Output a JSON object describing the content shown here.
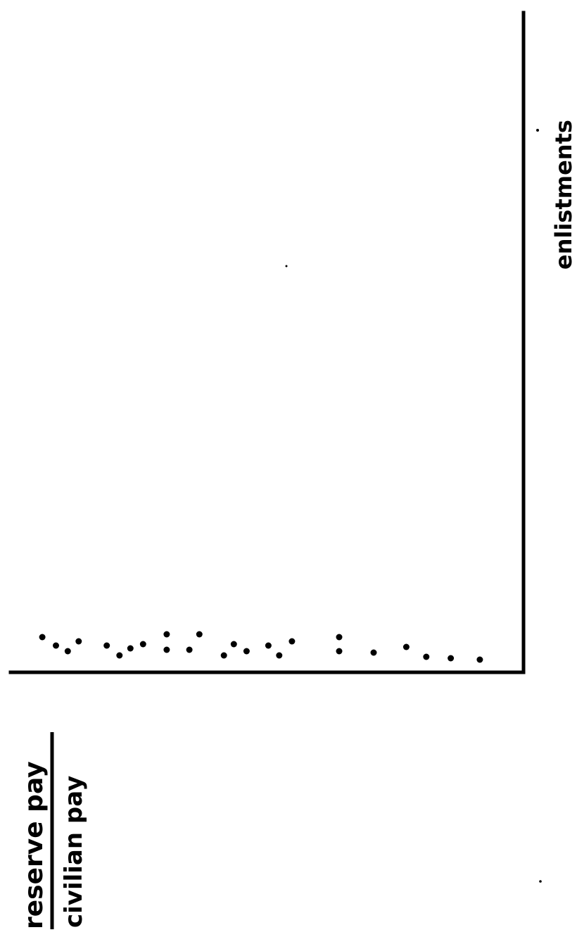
{
  "chart_data": {
    "type": "scatter",
    "title": "",
    "orientation": "rotated-90",
    "x_axis": {
      "label": "enlistments",
      "ticks": []
    },
    "y_axis": {
      "label_numerator": "reserve pay",
      "label_denominator": "civilian pay",
      "ticks": []
    },
    "grid": false,
    "legend": "none",
    "points": [
      {
        "x": 1.8,
        "y": 0.35
      },
      {
        "x": 1.2,
        "y": 0.5
      },
      {
        "x": 0.8,
        "y": 0.63
      },
      {
        "x": 1.5,
        "y": 0.75
      },
      {
        "x": 1.2,
        "y": 1.06
      },
      {
        "x": 0.5,
        "y": 1.2
      },
      {
        "x": 1.0,
        "y": 1.32
      },
      {
        "x": 1.3,
        "y": 1.46
      },
      {
        "x": 0.9,
        "y": 1.72
      },
      {
        "x": 2.0,
        "y": 1.72
      },
      {
        "x": 0.9,
        "y": 1.97
      },
      {
        "x": 2.0,
        "y": 2.08
      },
      {
        "x": 0.5,
        "y": 2.35
      },
      {
        "x": 1.3,
        "y": 2.46
      },
      {
        "x": 0.8,
        "y": 2.6
      },
      {
        "x": 1.2,
        "y": 2.84
      },
      {
        "x": 0.5,
        "y": 2.96
      },
      {
        "x": 1.5,
        "y": 3.1
      },
      {
        "x": 0.8,
        "y": 3.62
      },
      {
        "x": 1.8,
        "y": 3.62
      },
      {
        "x": 0.7,
        "y": 4.0
      },
      {
        "x": 1.1,
        "y": 4.36
      },
      {
        "x": 0.4,
        "y": 4.58
      },
      {
        "x": 0.3,
        "y": 4.85
      },
      {
        "x": 0.2,
        "y": 5.17
      }
    ]
  }
}
